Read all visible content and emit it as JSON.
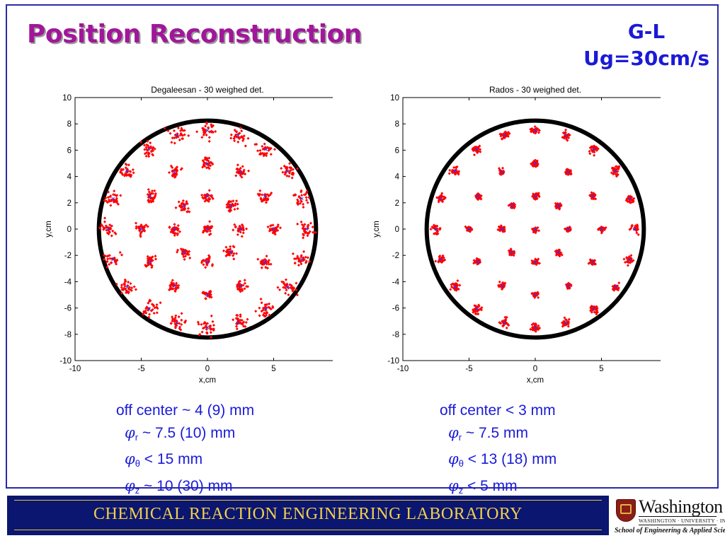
{
  "slide": {
    "title": "Position Reconstruction",
    "condition_line1": "G-L",
    "condition_line2": "Ug=30cm/s"
  },
  "chart_data": [
    {
      "type": "scatter",
      "title": "Degaleesan - 30 weighed det.",
      "xlabel": "x,cm",
      "ylabel": "y,cm",
      "xlim": [
        -10,
        10
      ],
      "ylim": [
        -10,
        10
      ],
      "xticks": [
        -10,
        -5,
        0,
        5,
        10
      ],
      "yticks": [
        -10,
        -8,
        -6,
        -4,
        -2,
        0,
        2,
        4,
        6,
        8,
        10
      ],
      "grid": false,
      "column_radius": 8.2,
      "ring_radii": [
        0,
        2.5,
        5,
        7.5
      ],
      "points_per_ring": [
        1,
        8,
        12,
        20
      ],
      "reconstructed_spread_cm": 0.42,
      "colors": {
        "reconstructed": "#ff0000",
        "true_position": "#3333ff",
        "column_wall": "#000000"
      }
    },
    {
      "type": "scatter",
      "title": "Rados - 30 weighed det.",
      "xlabel": "x,cm",
      "ylabel": "y,cm",
      "xlim": [
        -10,
        10
      ],
      "ylim": [
        -10,
        10
      ],
      "xticks": [
        -10,
        -5,
        0,
        5,
        10
      ],
      "yticks": [
        -10,
        -8,
        -6,
        -4,
        -2,
        0,
        2,
        4,
        6,
        8,
        10
      ],
      "grid": false,
      "column_radius": 8.2,
      "ring_radii": [
        0,
        2.5,
        5,
        7.5
      ],
      "points_per_ring": [
        1,
        8,
        12,
        20
      ],
      "reconstructed_spread_cm": 0.22,
      "colors": {
        "reconstructed": "#ff0000",
        "true_position": "#3333ff",
        "column_wall": "#000000"
      }
    }
  ],
  "stats_left": {
    "offcenter": "off center ~ 4 (9) mm",
    "phi_symbol": "φ",
    "r_sub": "r",
    "r_val": " ~ 7.5 (10) mm",
    "theta_sub": "θ",
    "theta_val": " < 15 mm",
    "z_sub": "z",
    "z_val": " ~ 10 (30) mm"
  },
  "stats_right": {
    "offcenter": "off center < 3 mm",
    "phi_symbol": "φ",
    "r_sub": "r",
    "r_val": " ~ 7.5 mm",
    "theta_sub": "θ",
    "theta_val": " < 13 (18) mm",
    "z_sub": "z",
    "z_val": " < 5 mm"
  },
  "footer": {
    "label": "CHEMICAL  REACTION  ENGINEERING  LABORATORY"
  },
  "logo": {
    "name": "Washington",
    "university": "WASHINGTON · UNIVERSITY · IN · ST · LOUIS",
    "school": "School of Engineering & Applied Science"
  }
}
